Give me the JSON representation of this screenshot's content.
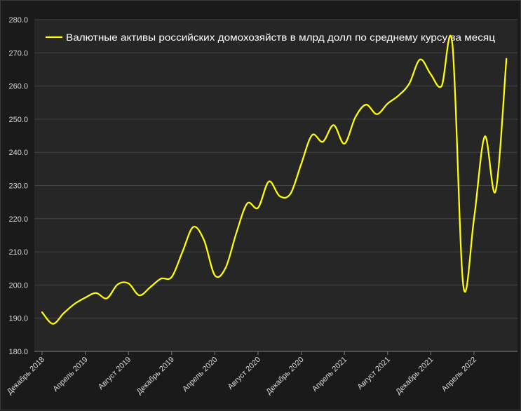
{
  "chart_data": {
    "type": "line",
    "title": "",
    "xlabel": "",
    "ylabel": "",
    "ylim": [
      180,
      280
    ],
    "yticks": [
      "180.0",
      "190.0",
      "200.0",
      "210.0",
      "220.0",
      "230.0",
      "240.0",
      "250.0",
      "260.0",
      "270.0",
      "280.0"
    ],
    "xtick_labels": [
      "Декабрь 2018",
      "Апрель 2019",
      "Август 2019",
      "Декабрь 2019",
      "Апрель 2020",
      "Август 2020",
      "Декабрь 2020",
      "Апрель 2021",
      "Август 2021",
      "Декабрь 2021",
      "Апрель 2022"
    ],
    "grid": true,
    "legend_position": "top",
    "colors": {
      "background": "#262626",
      "line": "#ffff00",
      "grid": "#444444"
    },
    "series": [
      {
        "name": "Валютные активы российских домохозяйств в млрд долл по среднему курсу за месяц",
        "x": [
          "Декабрь 2018",
          "Январь 2019",
          "Февраль 2019",
          "Март 2019",
          "Апрель 2019",
          "Май 2019",
          "Июнь 2019",
          "Июль 2019",
          "Август 2019",
          "Сентябрь 2019",
          "Октябрь 2019",
          "Ноябрь 2019",
          "Декабрь 2019",
          "Январь 2020",
          "Февраль 2020",
          "Март 2020",
          "Апрель 2020",
          "Май 2020",
          "Июнь 2020",
          "Июль 2020",
          "Август 2020",
          "Сентябрь 2020",
          "Октябрь 2020",
          "Ноябрь 2020",
          "Декабрь 2020",
          "Январь 2021",
          "Февраль 2021",
          "Март 2021",
          "Апрель 2021",
          "Май 2021",
          "Июнь 2021",
          "Июль 2021",
          "Август 2021",
          "Сентябрь 2021",
          "Октябрь 2021",
          "Ноябрь 2021",
          "Декабрь 2021",
          "Январь 2022",
          "Февраль 2022",
          "Март 2022",
          "Апрель 2022",
          "Май 2022",
          "Июнь 2022",
          "Июль 2022"
        ],
        "values": [
          191.8,
          188.3,
          191.5,
          194.3,
          196.2,
          197.6,
          196.0,
          200.2,
          200.5,
          196.9,
          199.3,
          201.9,
          202.4,
          210.0,
          217.5,
          213.5,
          202.9,
          205.2,
          215.8,
          224.6,
          223.3,
          231.2,
          226.8,
          227.5,
          236.5,
          245.2,
          243.2,
          248.2,
          242.6,
          250.5,
          254.4,
          251.5,
          254.7,
          257.1,
          260.7,
          268.0,
          263.5,
          260.0,
          272.5,
          200.0,
          220.0,
          244.8,
          228.3,
          268.2
        ]
      }
    ]
  }
}
